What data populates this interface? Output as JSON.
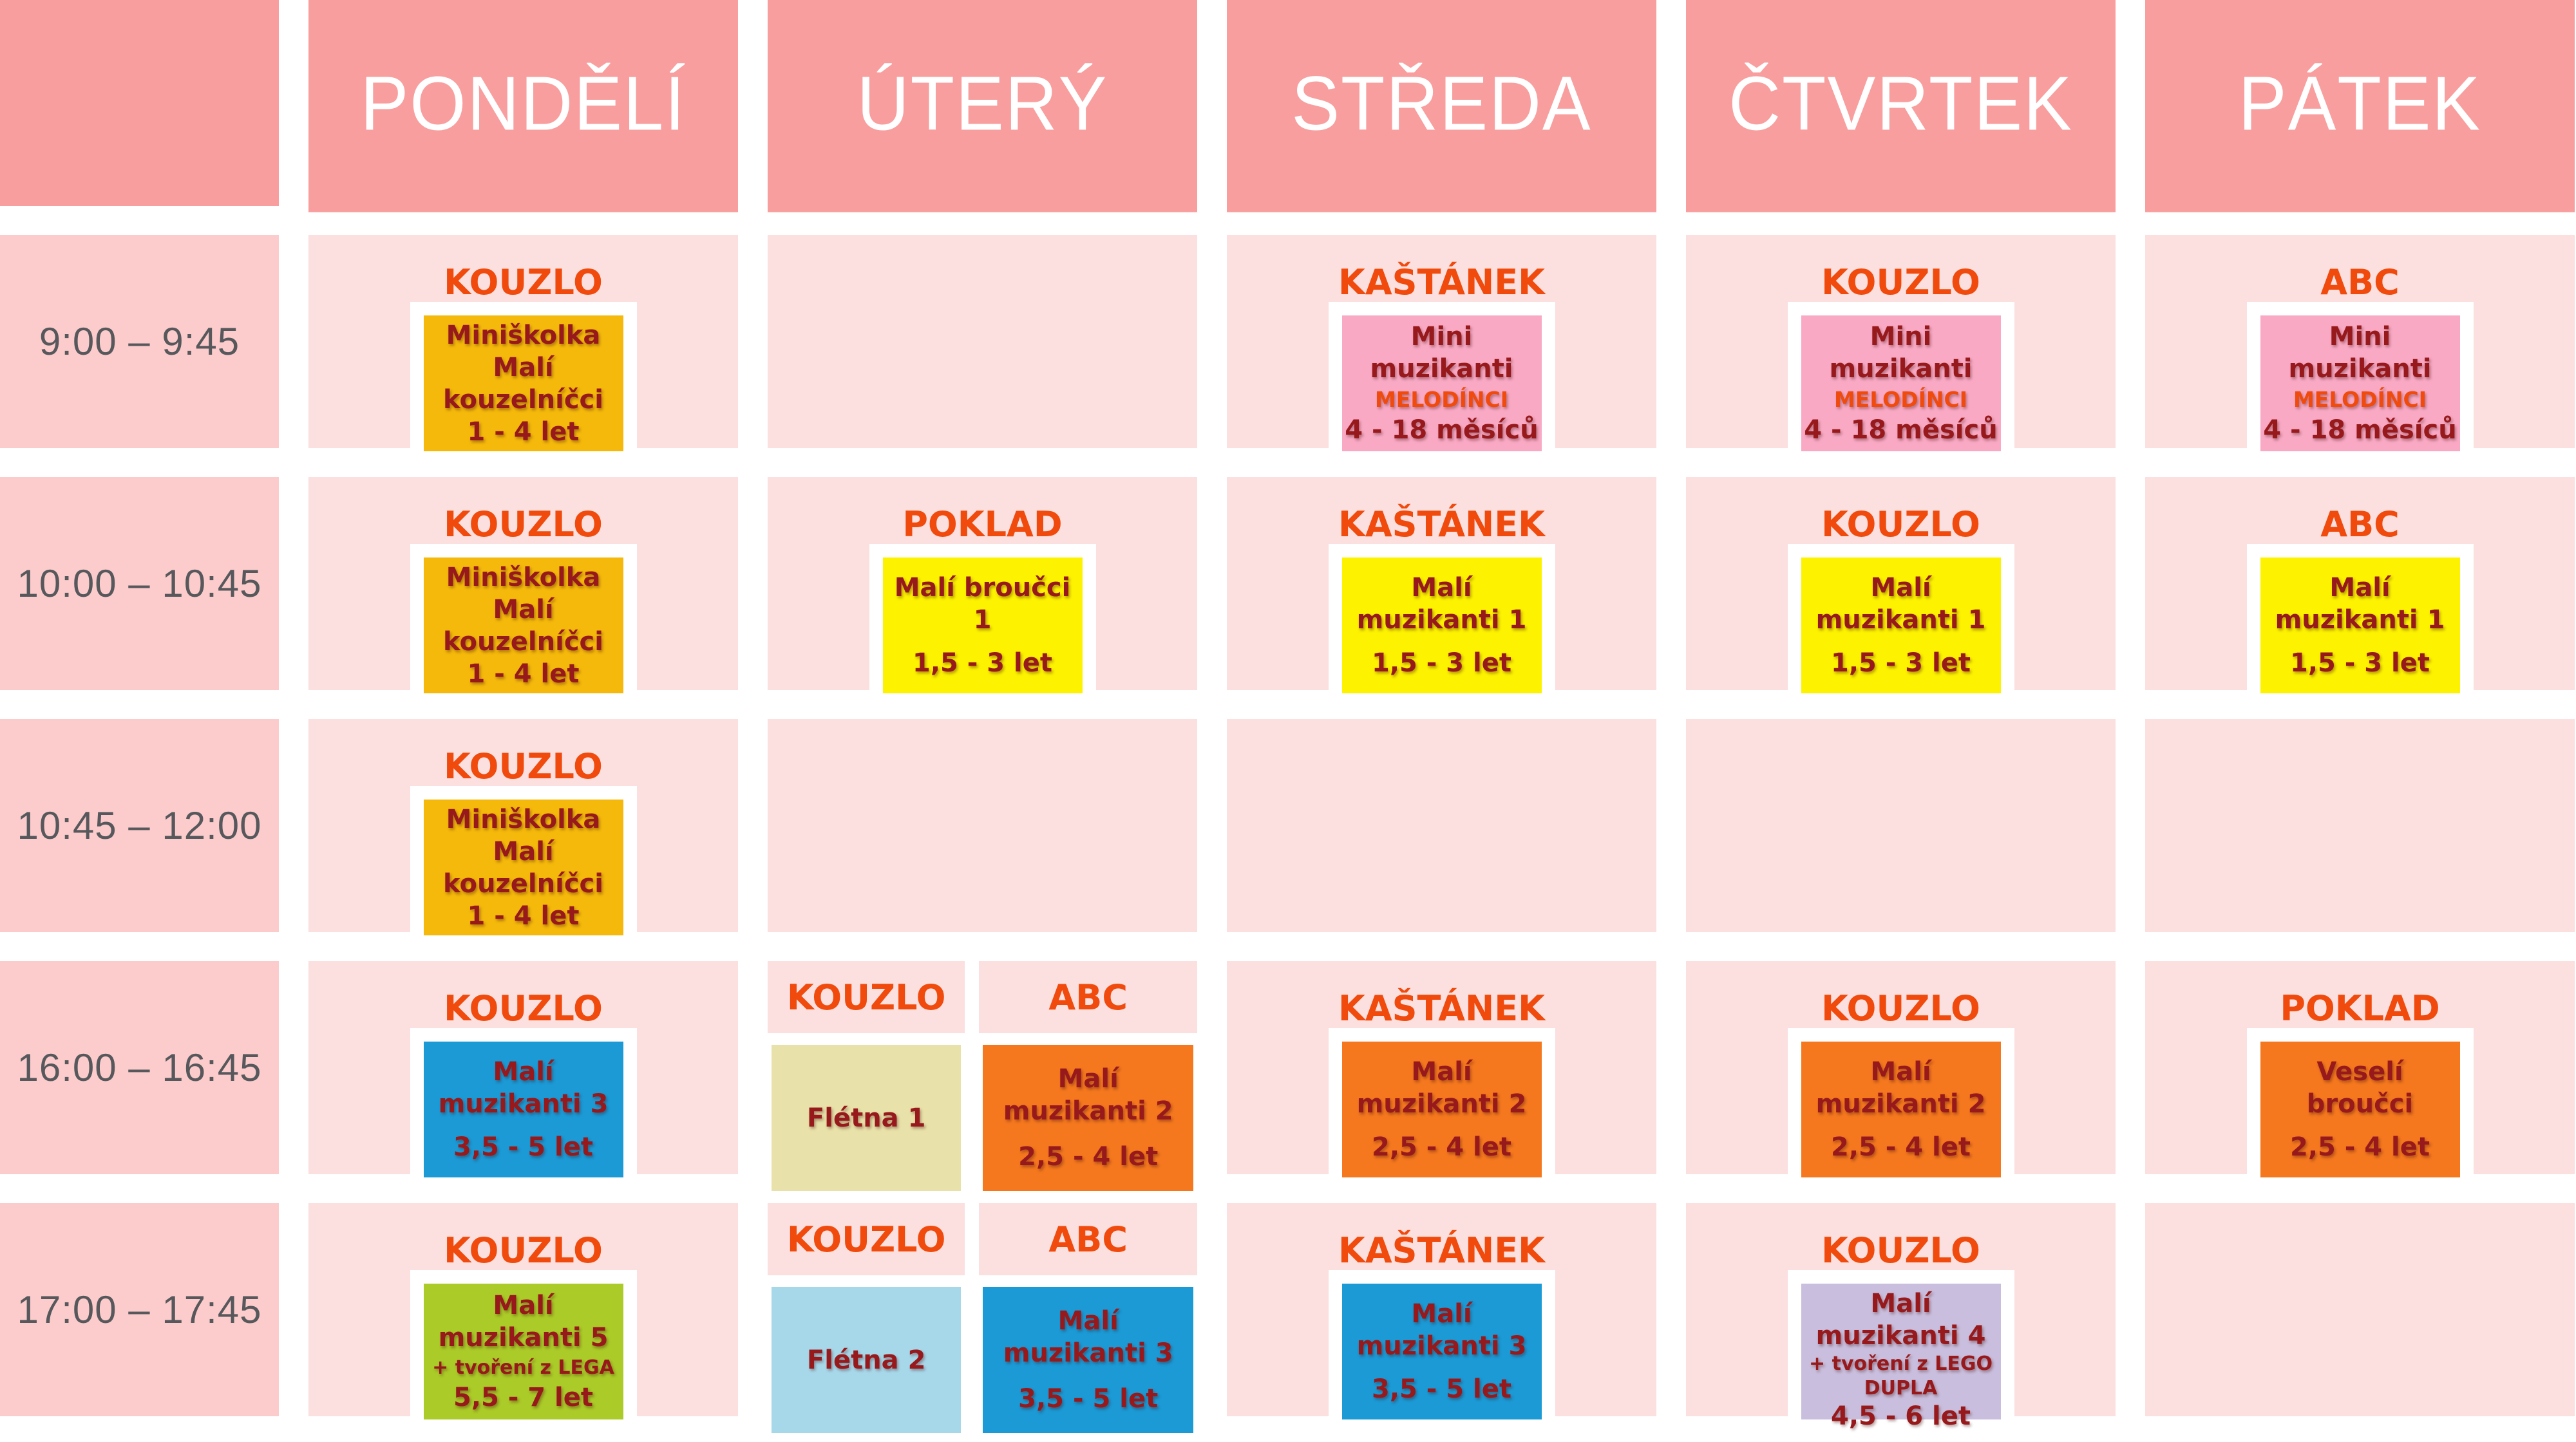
{
  "palette": {
    "header_bg": "#F99E9E",
    "header_text": "#FFFFFF",
    "cell_bg": "#FCDFDF",
    "time_bg": "#FCCCCC",
    "time_color": "#57585C",
    "venue_color": "#F04A0C",
    "title_color": "#97191B",
    "page_bg": "#FFFFFF"
  },
  "card_colors": {
    "gold": "#F5B90B",
    "yellow": "#FDF200",
    "pink": "#F9A9C4",
    "blue": "#1B9AD6",
    "lightblue": "#A7D8EA",
    "beige": "#E8E1A9",
    "orange": "#F5781E",
    "green": "#ABCB28",
    "lilac": "#C9BEDD"
  },
  "days": [
    "PONDĚLÍ",
    "ÚTERÝ",
    "STŘEDA",
    "ČTVRTEK",
    "PÁTEK"
  ],
  "rows": [
    {
      "time": "9:00 – 9:45",
      "cells": [
        {
          "type": "card",
          "venue": "KOUZLO",
          "color": "gold",
          "lines": [
            {
              "style": "title",
              "text": "Miniškolka"
            },
            {
              "style": "title",
              "text": "Malí kouzelníčci"
            },
            {
              "style": "age",
              "text": "1 - 4 let"
            }
          ]
        },
        {
          "type": "empty"
        },
        {
          "type": "card",
          "venue": "KAŠTÁNEK",
          "color": "pink",
          "lines": [
            {
              "style": "title",
              "text": "Mini muzikanti"
            },
            {
              "style": "suborange",
              "text": "MELODÍNCI"
            },
            {
              "style": "age",
              "text": "4 - 18 měsíců"
            }
          ]
        },
        {
          "type": "card",
          "venue": "KOUZLO",
          "color": "pink",
          "lines": [
            {
              "style": "title",
              "text": "Mini muzikanti"
            },
            {
              "style": "suborange",
              "text": "MELODÍNCI"
            },
            {
              "style": "age",
              "text": "4 - 18 měsíců"
            }
          ]
        },
        {
          "type": "card",
          "venue": "ABC",
          "color": "pink",
          "lines": [
            {
              "style": "title",
              "text": "Mini muzikanti"
            },
            {
              "style": "suborange",
              "text": "MELODÍNCI"
            },
            {
              "style": "age",
              "text": "4 - 18 měsíců"
            }
          ]
        }
      ]
    },
    {
      "time": "10:00 – 10:45",
      "cells": [
        {
          "type": "card",
          "venue": "KOUZLO",
          "color": "gold",
          "lines": [
            {
              "style": "title",
              "text": "Miniškolka"
            },
            {
              "style": "title",
              "text": "Malí kouzelníčci"
            },
            {
              "style": "age",
              "text": "1 - 4 let"
            }
          ]
        },
        {
          "type": "card",
          "venue": "POKLAD",
          "color": "yellow",
          "lines": [
            {
              "style": "title",
              "text": "Malí broučci 1"
            },
            {
              "style": "age",
              "text": "1,5 - 3 let"
            }
          ]
        },
        {
          "type": "card",
          "venue": "KAŠTÁNEK",
          "color": "yellow",
          "lines": [
            {
              "style": "title",
              "text": "Malí muzikanti 1"
            },
            {
              "style": "age",
              "text": "1,5 - 3 let"
            }
          ]
        },
        {
          "type": "card",
          "venue": "KOUZLO",
          "color": "yellow",
          "lines": [
            {
              "style": "title",
              "text": "Malí muzikanti 1"
            },
            {
              "style": "age",
              "text": "1,5 - 3 let"
            }
          ]
        },
        {
          "type": "card",
          "venue": "ABC",
          "color": "yellow",
          "lines": [
            {
              "style": "title",
              "text": "Malí muzikanti 1"
            },
            {
              "style": "age",
              "text": "1,5 - 3 let"
            }
          ]
        }
      ]
    },
    {
      "time": "10:45 – 12:00",
      "cells": [
        {
          "type": "card",
          "venue": "KOUZLO",
          "color": "gold",
          "lines": [
            {
              "style": "title",
              "text": "Miniškolka"
            },
            {
              "style": "title",
              "text": "Malí kouzelníčci"
            },
            {
              "style": "age",
              "text": "1 - 4 let"
            }
          ]
        },
        {
          "type": "empty"
        },
        {
          "type": "empty"
        },
        {
          "type": "empty"
        },
        {
          "type": "empty"
        }
      ]
    },
    {
      "time": "16:00 – 16:45",
      "cells": [
        {
          "type": "card",
          "venue": "KOUZLO",
          "color": "blue",
          "lines": [
            {
              "style": "title",
              "text": "Malí muzikanti 3"
            },
            {
              "style": "age",
              "text": "3,5 - 5 let"
            }
          ]
        },
        {
          "type": "split",
          "parts": [
            {
              "venue": "KOUZLO",
              "color": "beige",
              "lines": [
                {
                  "style": "title",
                  "text": "Flétna 1"
                }
              ]
            },
            {
              "venue": "ABC",
              "color": "orange",
              "lines": [
                {
                  "style": "title",
                  "text": "Malí muzikanti 2"
                },
                {
                  "style": "age",
                  "text": "2,5 - 4 let"
                }
              ]
            }
          ]
        },
        {
          "type": "card",
          "venue": "KAŠTÁNEK",
          "color": "orange",
          "lines": [
            {
              "style": "title",
              "text": "Malí muzikanti 2"
            },
            {
              "style": "age",
              "text": "2,5 - 4 let"
            }
          ]
        },
        {
          "type": "card",
          "venue": "KOUZLO",
          "color": "orange",
          "lines": [
            {
              "style": "title",
              "text": "Malí muzikanti 2"
            },
            {
              "style": "age",
              "text": "2,5 - 4 let"
            }
          ]
        },
        {
          "type": "card",
          "venue": "POKLAD",
          "color": "orange",
          "lines": [
            {
              "style": "title",
              "text": "Veselí broučci"
            },
            {
              "style": "age",
              "text": "2,5 - 4 let"
            }
          ]
        }
      ]
    },
    {
      "time": "17:00 – 17:45",
      "cells": [
        {
          "type": "card",
          "venue": "KOUZLO",
          "color": "green",
          "lines": [
            {
              "style": "title",
              "text": "Malí muzikanti 5"
            },
            {
              "style": "sub",
              "text": "+ tvoření z LEGA"
            },
            {
              "style": "age",
              "text": "5,5 - 7 let"
            }
          ]
        },
        {
          "type": "split",
          "parts": [
            {
              "venue": "KOUZLO",
              "color": "lightblue",
              "lines": [
                {
                  "style": "title",
                  "text": "Flétna 2"
                }
              ]
            },
            {
              "venue": "ABC",
              "color": "blue",
              "lines": [
                {
                  "style": "title",
                  "text": "Malí muzikanti 3"
                },
                {
                  "style": "age",
                  "text": "3,5 - 5 let"
                }
              ]
            }
          ]
        },
        {
          "type": "card",
          "venue": "KAŠTÁNEK",
          "color": "blue",
          "lines": [
            {
              "style": "title",
              "text": "Malí muzikanti 3"
            },
            {
              "style": "age",
              "text": "3,5 - 5 let"
            }
          ]
        },
        {
          "type": "card",
          "venue": "KOUZLO",
          "color": "lilac",
          "lines": [
            {
              "style": "title",
              "text": "Malí muzikanti 4"
            },
            {
              "style": "sub",
              "text": "+ tvoření z LEGO DUPLA"
            },
            {
              "style": "age",
              "text": "4,5 - 6 let"
            }
          ]
        },
        {
          "type": "empty"
        }
      ]
    }
  ]
}
